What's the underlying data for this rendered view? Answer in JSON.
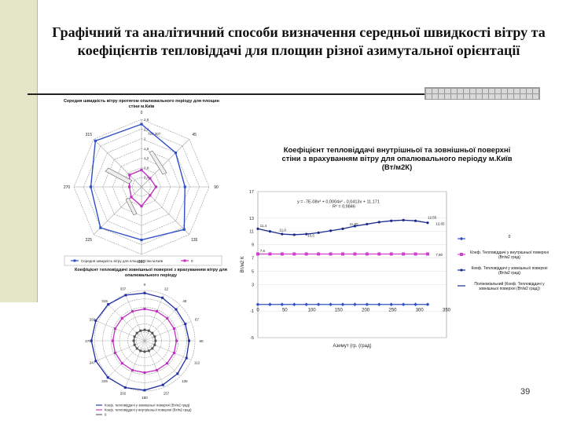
{
  "slide": {
    "title": "Графічний та аналітичний способи визначення середньої швидкості вітру та коефіцієнтів тепловіддачі для площин різної азимутальної орієнтації",
    "page_number": "39"
  },
  "chart_data": [
    {
      "type": "radar",
      "title": "Середня швидкість вітру протягом опалювального періоду для площин стіни м.Київ",
      "directions": [
        "0",
        "45",
        "90",
        "135",
        "180",
        "225",
        "270",
        "315"
      ],
      "rings": [
        0.4,
        0.8,
        1.2,
        1.6,
        2.0,
        2.4,
        2.8
      ],
      "ring_labels": [
        "0,4",
        "0,8",
        "1,2",
        "1,6",
        "2",
        "2,4",
        "2,8"
      ],
      "rmax": 2.8,
      "series": [
        {
          "name": "Середня швидкість вітру для площин стіни м.Київ",
          "values": [
            2.6,
            2.0,
            1.8,
            2.5,
            2.2,
            2.4,
            2.1,
            2.7
          ],
          "color": "#3050c8"
        },
        {
          "name": "0",
          "values": [
            0.7,
            0.5,
            0.6,
            0.5,
            0.8,
            0.6,
            0.5,
            0.7
          ],
          "color": "#c030c0"
        }
      ],
      "annotation": "720.307"
    },
    {
      "type": "line",
      "title": "Коефіцієнт тепловіддачі внутрішньої та зовнішньої поверхні стіни з врахуванням вітру для опалювального періоду м.Київ (Вт/м2К)",
      "xlabel": "Азимут (гр. (град)",
      "ylabel": "Вт/м2 К",
      "xlim": [
        0,
        350
      ],
      "ylim": [
        -5,
        17
      ],
      "xticks": [
        0,
        50,
        100,
        150,
        200,
        250,
        300,
        350
      ],
      "yticks": [
        -5,
        -1,
        3,
        5,
        7,
        9,
        11,
        13,
        17
      ],
      "equation": "y = -7E-08x³ + 0,0004x² - 0,0413x + 11,171",
      "r2": "R² = 0,9846",
      "series": [
        {
          "name": "Коеф. Тепловіддачі у зовнішньої поверхні (Вт/м2 град)",
          "x": [
            0,
            22.5,
            45,
            67.5,
            90,
            112.5,
            135,
            157.5,
            180,
            202.5,
            225,
            247.5,
            270,
            292.5,
            315
          ],
          "y": [
            11.4,
            11.0,
            10.6,
            10.5,
            10.6,
            10.8,
            11.1,
            11.4,
            11.8,
            12.1,
            12.4,
            12.6,
            12.7,
            12.6,
            12.3
          ],
          "color": "#1a2a8c",
          "marker": "circle"
        },
        {
          "name": "Коеф. Тепловіддачі у внутрішньої поверхні (Вт/м2 град)",
          "x": [
            0,
            22.5,
            45,
            67.5,
            90,
            112.5,
            135,
            157.5,
            180,
            202.5,
            225,
            247.5,
            270,
            292.5,
            315
          ],
          "y": [
            7.6,
            7.6,
            7.6,
            7.6,
            7.6,
            7.6,
            7.6,
            7.6,
            7.6,
            7.6,
            7.6,
            7.6,
            7.6,
            7.6,
            7.6
          ],
          "color": "#d040d0",
          "marker": "square"
        },
        {
          "name": "0",
          "x": [
            0,
            22.5,
            45,
            67.5,
            90,
            112.5,
            135,
            157.5,
            180,
            202.5,
            225,
            247.5,
            270,
            292.5,
            315
          ],
          "y": [
            0,
            0,
            0,
            0,
            0,
            0,
            0,
            0,
            0,
            0,
            0,
            0,
            0,
            0,
            0
          ],
          "color": "#3050c8",
          "marker": "diamond"
        },
        {
          "name": "Поліноміальний (Коеф. Тепловіддачі у зовнішньої поверхні (Вт/м2 град))",
          "color": "#1a2a8c",
          "marker": "none"
        }
      ],
      "point_labels": [
        "11,4",
        "11,0",
        "10,5",
        "11,80",
        "12,55",
        "12,65",
        "7,6",
        "7,60"
      ]
    },
    {
      "type": "radar",
      "title": "Коефіцієнт тепловіддачі зовнішньої поверхні з врахуванням вітру для опалювального періоду",
      "directions": [
        "0",
        "22",
        "45",
        "67",
        "90",
        "112",
        "135",
        "157",
        "180",
        "202",
        "225",
        "247",
        "270",
        "292",
        "315",
        "337"
      ],
      "rings": [
        2,
        4,
        6,
        8,
        10,
        12
      ],
      "rmax": 12,
      "series": [
        {
          "name": "Коеф. тепловіддачі у зовнішньої поверхні (Вт/м2 град)",
          "values": [
            11.4,
            11.1,
            10.6,
            10.5,
            10.6,
            10.8,
            11.1,
            11.4,
            11.8,
            12.1,
            12.4,
            12.6,
            12.7,
            12.6,
            12.3,
            11.8
          ],
          "color": "#2030a0"
        },
        {
          "name": "Коеф. тепловіддачі у внутрішньої поверхні (Вт/м2 град)",
          "values": [
            7.6,
            7.6,
            7.6,
            7.6,
            7.6,
            7.6,
            7.6,
            7.6,
            7.6,
            7.6,
            7.6,
            7.6,
            7.6,
            7.6,
            7.6,
            7.6
          ],
          "color": "#c030c0"
        },
        {
          "name": "0",
          "values": [
            2.6,
            2.6,
            2.6,
            2.6,
            2.6,
            2.6,
            2.6,
            2.6,
            2.6,
            2.6,
            2.6,
            2.6,
            2.6,
            2.6,
            2.6,
            2.6
          ],
          "color": "#555555"
        }
      ]
    }
  ]
}
